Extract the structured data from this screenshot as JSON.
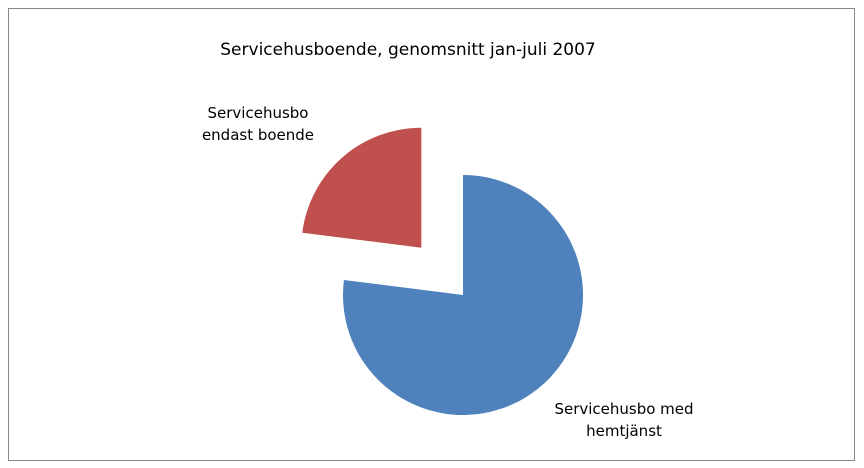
{
  "chart_data": {
    "type": "pie",
    "title": "Servicehusboende, genomsnitt jan-juli 2007",
    "categories": [
      "Servicehusbo med hemtjänst",
      "Servicehusbo endast boende"
    ],
    "values": [
      77,
      23
    ],
    "colors": [
      "#4f81bd",
      "#c0504d"
    ]
  }
}
